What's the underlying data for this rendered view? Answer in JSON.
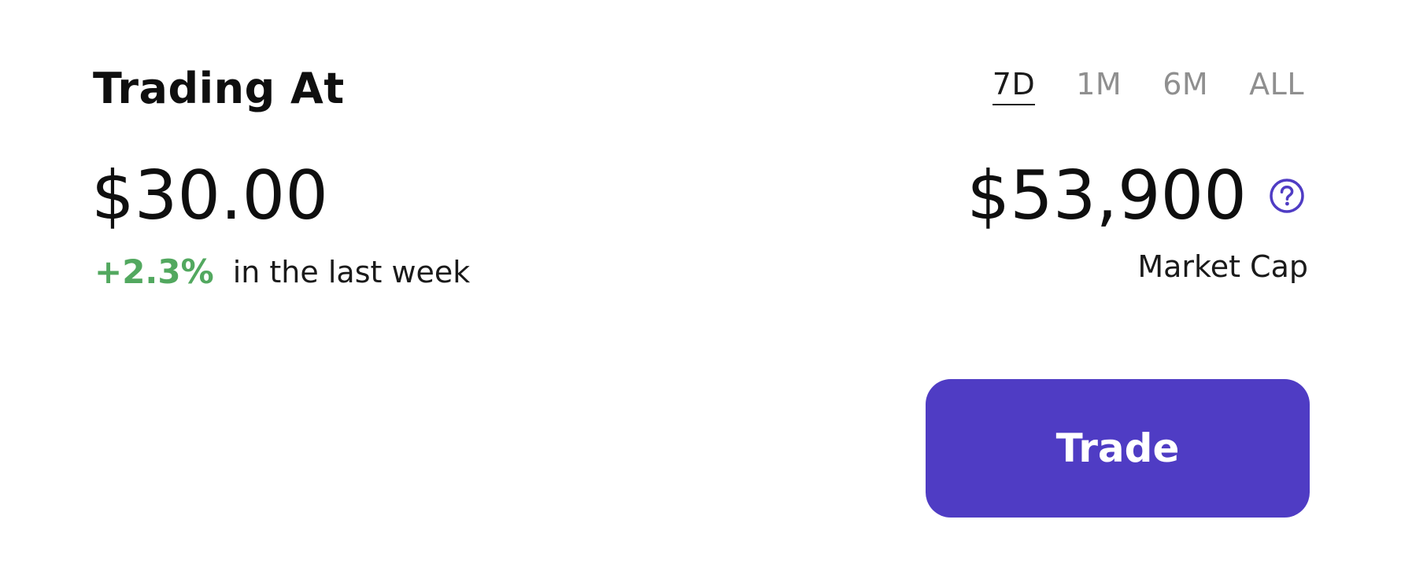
{
  "header": {
    "title": "Trading At"
  },
  "price": {
    "value": "$30.00",
    "change": "+2.3%",
    "change_suffix": "in the last week",
    "change_color": "#52a85f"
  },
  "range_tabs": {
    "items": [
      {
        "label": "7D",
        "active": true
      },
      {
        "label": "1M",
        "active": false
      },
      {
        "label": "6M",
        "active": false
      },
      {
        "label": "ALL",
        "active": false
      }
    ]
  },
  "market_cap": {
    "value": "$53,900",
    "label": "Market Cap",
    "help_icon": "question-circle-icon"
  },
  "actions": {
    "trade_label": "Trade"
  },
  "colors": {
    "accent": "#4f3cc4",
    "positive": "#52a85f",
    "inactive_tab": "#8f8f8f"
  }
}
